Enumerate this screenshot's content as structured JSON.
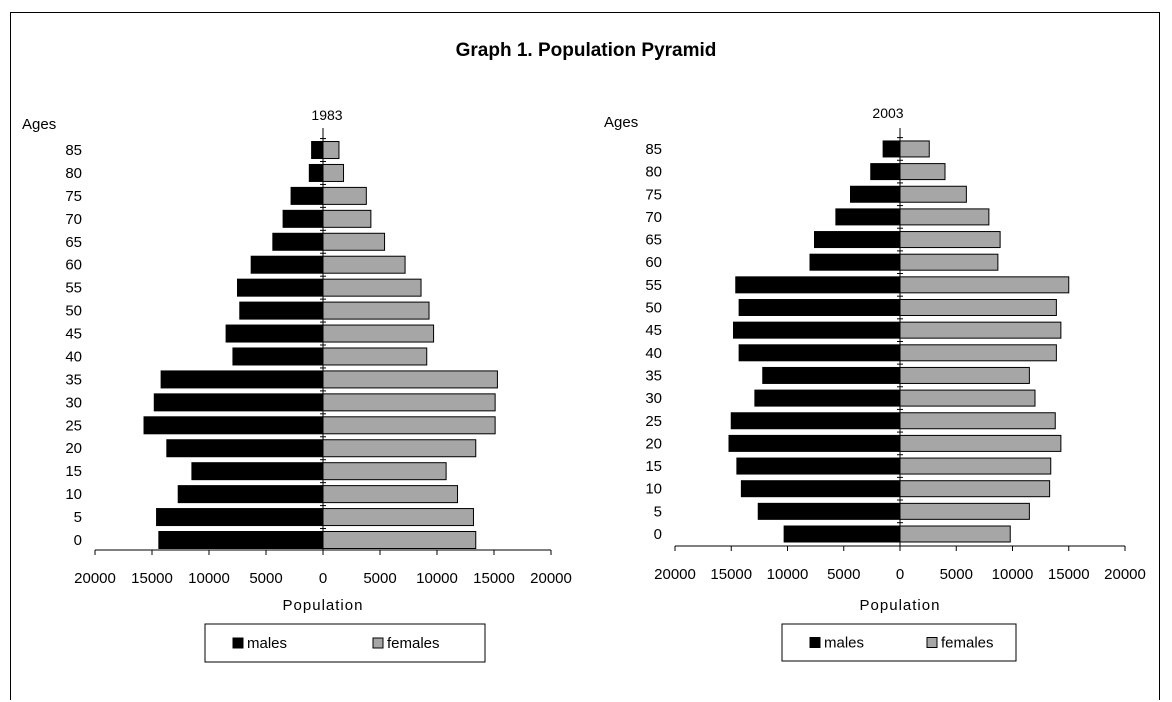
{
  "title": "Graph 1.  Population Pyramid",
  "colors": {
    "males": "#000000",
    "females": "#a6a6a6",
    "outline": "#000000"
  },
  "chart_data": [
    {
      "type": "bar",
      "orientation": "horizontal-pyramid",
      "title": "1983",
      "ylabel": "Ages",
      "xlabel": "Population",
      "categories": [
        "0",
        "5",
        "10",
        "15",
        "20",
        "25",
        "30",
        "35",
        "40",
        "45",
        "50",
        "55",
        "60",
        "65",
        "70",
        "75",
        "80",
        "85"
      ],
      "xlim": [
        -20000,
        20000
      ],
      "xticks": [
        "20000",
        "15000",
        "10000",
        "5000",
        "0",
        "5000",
        "10000",
        "15000",
        "20000"
      ],
      "grid": false,
      "legend_position": "bottom",
      "series": [
        {
          "name": "males",
          "values": [
            14400,
            14600,
            12700,
            11500,
            13700,
            15700,
            14800,
            14200,
            7900,
            8500,
            7300,
            7500,
            6300,
            4400,
            3500,
            2800,
            1200,
            1000
          ]
        },
        {
          "name": "females",
          "values": [
            13400,
            13200,
            11800,
            10800,
            13400,
            15100,
            15100,
            15300,
            9100,
            9700,
            9300,
            8600,
            7200,
            5400,
            4200,
            3800,
            1800,
            1400
          ]
        }
      ]
    },
    {
      "type": "bar",
      "orientation": "horizontal-pyramid",
      "title": "2003",
      "ylabel": "Ages",
      "xlabel": "Population",
      "categories": [
        "0",
        "5",
        "10",
        "15",
        "20",
        "25",
        "30",
        "35",
        "40",
        "45",
        "50",
        "55",
        "60",
        "65",
        "70",
        "75",
        "80",
        "85"
      ],
      "xlim": [
        -20000,
        20000
      ],
      "xticks": [
        "20000",
        "15000",
        "10000",
        "5000",
        "0",
        "5000",
        "10000",
        "15000",
        "20000"
      ],
      "grid": false,
      "legend_position": "bottom",
      "series": [
        {
          "name": "males",
          "values": [
            10300,
            12600,
            14100,
            14500,
            15200,
            15000,
            12900,
            12200,
            14300,
            14800,
            14300,
            14600,
            8000,
            7600,
            5700,
            4400,
            2600,
            1500
          ]
        },
        {
          "name": "females",
          "values": [
            9800,
            11500,
            13300,
            13400,
            14300,
            13800,
            12000,
            11500,
            13900,
            14300,
            13900,
            15000,
            8700,
            8900,
            7900,
            5900,
            4000,
            2600
          ]
        }
      ]
    }
  ]
}
